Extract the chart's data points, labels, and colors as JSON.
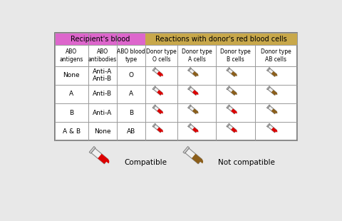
{
  "bg_color": "#e8e8e8",
  "table_bg": "#ffffff",
  "recipient_header_color": "#dd66cc",
  "donor_header_color": "#c8a84b",
  "grid_color": "#999999",
  "col_headers": [
    "ABO\nantigens",
    "ABO\nantibodies",
    "ABO blood\ntype",
    "Donor type\nO cells",
    "Donor type\nA cells",
    "Donor type\nB cells",
    "Donor type\nAB cells"
  ],
  "row_data": [
    [
      "None",
      "Anti-A\nAnti-B",
      "O"
    ],
    [
      "A",
      "Anti-B",
      "A"
    ],
    [
      "B",
      "Anti-A",
      "B"
    ],
    [
      "A & B",
      "None",
      "AB"
    ]
  ],
  "compatibility": [
    [
      "red",
      "brown",
      "brown",
      "brown"
    ],
    [
      "red",
      "red",
      "brown",
      "brown"
    ],
    [
      "red",
      "brown",
      "red",
      "brown"
    ],
    [
      "red",
      "red",
      "red",
      "red"
    ]
  ],
  "recipient_header": "Recipient's blood",
  "donor_header": "Reactions with donor's red blood cells",
  "compatible_color": "#dd0000",
  "incompatible_color": "#8B5E1A",
  "legend_compatible": "Compatible",
  "legend_incompatible": "Not compatible"
}
